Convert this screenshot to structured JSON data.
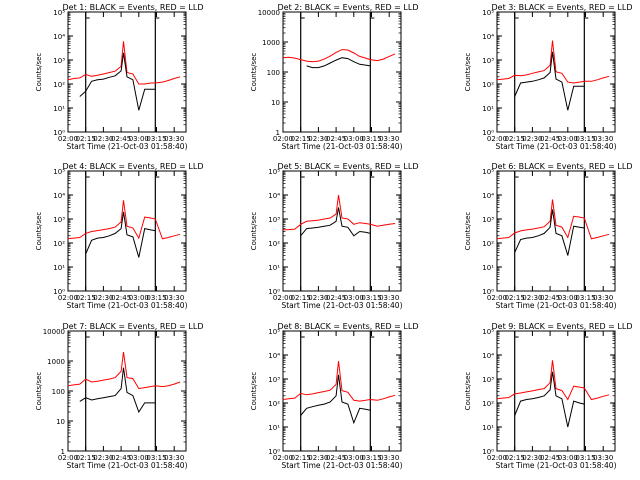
{
  "figure": {
    "common_xlabel": "Start Time (21-Oct-03 01:58:40)",
    "common_ylabel": "Counts/sec",
    "xtick_labels": [
      "02:00",
      "02:15",
      "02:30",
      "02:45",
      "03:00",
      "03:15",
      "03:30"
    ],
    "line_colors": {
      "events": "#000000",
      "lld": "#ff0000"
    }
  },
  "chart_data": [
    {
      "type": "line",
      "title": "Det 1: BLACK = Events, RED = LLD",
      "xlabel": "Start Time (21-Oct-03 01:58:40)",
      "ylabel": "Counts/sec",
      "yscale": "log",
      "ylim": [
        1,
        100000
      ],
      "ytick_labels": [
        "10⁰",
        "10¹",
        "10²",
        "10³",
        "10⁴",
        "10⁵"
      ],
      "xlim": [
        "02:00",
        "03:40"
      ],
      "vlines": [
        "02:15",
        "03:14"
      ],
      "x": [
        "02:00",
        "02:05",
        "02:10",
        "02:15",
        "02:20",
        "02:25",
        "02:30",
        "02:35",
        "02:40",
        "02:45",
        "02:47",
        "02:50",
        "02:55",
        "03:00",
        "03:05",
        "03:10",
        "03:14",
        "03:20",
        "03:25",
        "03:30",
        "03:35",
        "03:40"
      ],
      "series": [
        {
          "name": "Events",
          "values": [
            null,
            null,
            30,
            50,
            130,
            150,
            160,
            190,
            220,
            350,
            2000,
            200,
            150,
            8,
            60,
            60,
            60,
            null,
            null,
            null,
            null,
            null
          ]
        },
        {
          "name": "LLD",
          "values": [
            150,
            170,
            180,
            250,
            210,
            230,
            260,
            300,
            340,
            550,
            6000,
            300,
            260,
            100,
            100,
            110,
            110,
            120,
            140,
            170,
            200,
            null
          ]
        }
      ]
    },
    {
      "type": "line",
      "title": "Det 2: BLACK = Events, RED = LLD",
      "xlabel": "Start Time (21-Oct-03 01:58:40)",
      "ylabel": "Counts/sec",
      "yscale": "log",
      "ylim": [
        1,
        10000
      ],
      "ytick_labels": [
        "1",
        "10",
        "100",
        "1000",
        "10000"
      ],
      "xlim": [
        "02:00",
        "03:40"
      ],
      "vlines": [
        "02:15",
        "03:14"
      ],
      "x": [
        "02:00",
        "02:05",
        "02:10",
        "02:15",
        "02:20",
        "02:25",
        "02:30",
        "02:35",
        "02:40",
        "02:45",
        "02:50",
        "02:55",
        "03:00",
        "03:05",
        "03:10",
        "03:14",
        "03:20",
        "03:25",
        "03:30",
        "03:35",
        "03:40"
      ],
      "series": [
        {
          "name": "Events",
          "values": [
            null,
            null,
            null,
            null,
            160,
            140,
            140,
            160,
            200,
            250,
            300,
            280,
            220,
            180,
            170,
            160,
            null,
            null,
            null,
            null,
            null
          ]
        },
        {
          "name": "LLD",
          "values": [
            300,
            310,
            290,
            260,
            230,
            220,
            230,
            270,
            340,
            450,
            560,
            540,
            430,
            330,
            290,
            260,
            240,
            270,
            330,
            400,
            null
          ]
        }
      ]
    },
    {
      "type": "line",
      "title": "Det 3: BLACK = Events, RED = LLD",
      "xlabel": "Start Time (21-Oct-03 01:58:40)",
      "ylabel": "Counts/sec",
      "yscale": "log",
      "ylim": [
        1,
        100000
      ],
      "ytick_labels": [
        "10⁰",
        "10¹",
        "10²",
        "10³",
        "10⁴",
        "10⁵"
      ],
      "xlim": [
        "02:00",
        "03:40"
      ],
      "vlines": [
        "02:15",
        "03:14"
      ],
      "x": [
        "02:00",
        "02:05",
        "02:10",
        "02:15",
        "02:20",
        "02:25",
        "02:30",
        "02:35",
        "02:40",
        "02:45",
        "02:47",
        "02:50",
        "02:55",
        "03:00",
        "03:05",
        "03:10",
        "03:14",
        "03:20",
        "03:25",
        "03:30",
        "03:35",
        "03:40"
      ],
      "series": [
        {
          "name": "Events",
          "values": [
            null,
            null,
            null,
            30,
            110,
            120,
            130,
            150,
            180,
            300,
            2200,
            160,
            120,
            8,
            80,
            80,
            80,
            null,
            null,
            null,
            null,
            null
          ]
        },
        {
          "name": "LLD",
          "values": [
            150,
            160,
            170,
            230,
            220,
            240,
            280,
            320,
            360,
            600,
            6500,
            320,
            280,
            120,
            110,
            120,
            130,
            130,
            150,
            180,
            210,
            null
          ]
        }
      ]
    },
    {
      "type": "line",
      "title": "Det 4: BLACK = Events, RED = LLD",
      "xlabel": "Start Time (21-Oct-03 01:58:40)",
      "ylabel": "Counts/sec",
      "yscale": "log",
      "ylim": [
        1,
        100000
      ],
      "ytick_labels": [
        "10⁰",
        "10¹",
        "10²",
        "10³",
        "10⁴",
        "10⁵"
      ],
      "xlim": [
        "02:00",
        "03:40"
      ],
      "vlines": [
        "02:15",
        "03:14"
      ],
      "x": [
        "02:00",
        "02:05",
        "02:10",
        "02:15",
        "02:20",
        "02:25",
        "02:30",
        "02:35",
        "02:40",
        "02:45",
        "02:47",
        "02:50",
        "02:55",
        "03:00",
        "03:05",
        "03:10",
        "03:14",
        "03:20",
        "03:25",
        "03:30",
        "03:35",
        "03:40"
      ],
      "series": [
        {
          "name": "Events",
          "values": [
            null,
            null,
            null,
            35,
            130,
            160,
            170,
            200,
            250,
            400,
            2000,
            220,
            180,
            25,
            400,
            350,
            330,
            null,
            null,
            null,
            null,
            null
          ]
        },
        {
          "name": "LLD",
          "values": [
            150,
            160,
            170,
            250,
            300,
            330,
            360,
            400,
            460,
            750,
            6000,
            500,
            420,
            160,
            1200,
            1100,
            1000,
            150,
            170,
            200,
            230,
            null
          ]
        }
      ]
    },
    {
      "type": "line",
      "title": "Det 5: BLACK = Events, RED = LLD",
      "xlabel": "Start Time (21-Oct-03 01:58:40)",
      "ylabel": "Counts/sec",
      "yscale": "log",
      "ylim": [
        1,
        100000
      ],
      "ytick_labels": [
        "10⁰",
        "10¹",
        "10²",
        "10³",
        "10⁴",
        "10⁵"
      ],
      "xlim": [
        "02:00",
        "03:40"
      ],
      "vlines": [
        "02:15",
        "03:14"
      ],
      "x": [
        "02:00",
        "02:05",
        "02:10",
        "02:15",
        "02:20",
        "02:25",
        "02:30",
        "02:35",
        "02:40",
        "02:45",
        "02:47",
        "02:50",
        "02:55",
        "03:00",
        "03:05",
        "03:10",
        "03:14",
        "03:20",
        "03:25",
        "03:30",
        "03:35",
        "03:40"
      ],
      "series": [
        {
          "name": "Events",
          "values": [
            null,
            null,
            null,
            200,
            400,
            420,
            450,
            500,
            550,
            800,
            3000,
            500,
            450,
            200,
            300,
            280,
            250,
            null,
            null,
            null,
            null,
            null
          ]
        },
        {
          "name": "LLD",
          "values": [
            350,
            360,
            380,
            600,
            800,
            850,
            900,
            1000,
            1100,
            1600,
            10000,
            1100,
            1000,
            600,
            700,
            650,
            600,
            500,
            550,
            600,
            650,
            null
          ]
        }
      ]
    },
    {
      "type": "line",
      "title": "Det 6: BLACK = Events, RED = LLD",
      "xlabel": "Start Time (21-Oct-03 01:58:40)",
      "ylabel": "Counts/sec",
      "yscale": "log",
      "ylim": [
        1,
        100000
      ],
      "ytick_labels": [
        "10⁰",
        "10¹",
        "10²",
        "10³",
        "10⁴",
        "10⁵"
      ],
      "xlim": [
        "02:00",
        "03:40"
      ],
      "vlines": [
        "02:15",
        "03:14"
      ],
      "x": [
        "02:00",
        "02:05",
        "02:10",
        "02:15",
        "02:20",
        "02:25",
        "02:30",
        "02:35",
        "02:40",
        "02:45",
        "02:47",
        "02:50",
        "02:55",
        "03:00",
        "03:05",
        "03:10",
        "03:14",
        "03:20",
        "03:25",
        "03:30",
        "03:35",
        "03:40"
      ],
      "series": [
        {
          "name": "Events",
          "values": [
            null,
            null,
            null,
            40,
            140,
            160,
            170,
            200,
            250,
            450,
            2500,
            250,
            200,
            30,
            500,
            450,
            420,
            null,
            null,
            null,
            null,
            null
          ]
        },
        {
          "name": "LLD",
          "values": [
            150,
            160,
            170,
            260,
            320,
            350,
            380,
            420,
            480,
            800,
            6500,
            550,
            460,
            170,
            1300,
            1200,
            1100,
            150,
            170,
            200,
            230,
            null
          ]
        }
      ]
    },
    {
      "type": "line",
      "title": "Det 7: BLACK = Events, RED = LLD",
      "xlabel": "Start Time (21-Oct-03 01:58:40)",
      "ylabel": "Counts/sec",
      "yscale": "log",
      "ylim": [
        1,
        10000
      ],
      "ytick_labels": [
        "1",
        "10",
        "100",
        "1000",
        "10000"
      ],
      "xlim": [
        "02:00",
        "03:40"
      ],
      "vlines": [
        "02:15",
        "03:14"
      ],
      "x": [
        "02:00",
        "02:05",
        "02:10",
        "02:15",
        "02:20",
        "02:25",
        "02:30",
        "02:35",
        "02:40",
        "02:45",
        "02:47",
        "02:50",
        "02:55",
        "03:00",
        "03:05",
        "03:10",
        "03:14",
        "03:20",
        "03:25",
        "03:30",
        "03:35",
        "03:40"
      ],
      "series": [
        {
          "name": "Events",
          "values": [
            null,
            null,
            45,
            60,
            50,
            55,
            60,
            65,
            70,
            120,
            600,
            90,
            70,
            20,
            40,
            40,
            40,
            null,
            null,
            null,
            null,
            null
          ]
        },
        {
          "name": "LLD",
          "values": [
            150,
            160,
            170,
            250,
            200,
            210,
            230,
            250,
            280,
            450,
            2000,
            280,
            260,
            120,
            130,
            140,
            150,
            140,
            150,
            170,
            200,
            null
          ]
        }
      ]
    },
    {
      "type": "line",
      "title": "Det 8: BLACK = Events, RED = LLD",
      "xlabel": "Start Time (21-Oct-03 01:58:40)",
      "ylabel": "Counts/sec",
      "yscale": "log",
      "ylim": [
        1,
        100000
      ],
      "ytick_labels": [
        "10⁰",
        "10¹",
        "10²",
        "10³",
        "10⁴",
        "10⁵"
      ],
      "xlim": [
        "02:00",
        "03:40"
      ],
      "vlines": [
        "02:15",
        "03:14"
      ],
      "x": [
        "02:00",
        "02:05",
        "02:10",
        "02:15",
        "02:20",
        "02:25",
        "02:30",
        "02:35",
        "02:40",
        "02:45",
        "02:47",
        "02:50",
        "02:55",
        "03:00",
        "03:05",
        "03:10",
        "03:14",
        "03:20",
        "03:25",
        "03:30",
        "03:35",
        "03:40"
      ],
      "series": [
        {
          "name": "Events",
          "values": [
            null,
            null,
            null,
            30,
            60,
            70,
            80,
            90,
            110,
            200,
            1500,
            110,
            90,
            15,
            60,
            55,
            50,
            null,
            null,
            null,
            null,
            null
          ]
        },
        {
          "name": "LLD",
          "values": [
            140,
            150,
            160,
            250,
            220,
            240,
            270,
            300,
            340,
            600,
            5500,
            330,
            280,
            130,
            120,
            130,
            140,
            130,
            150,
            180,
            210,
            null
          ]
        }
      ]
    },
    {
      "type": "line",
      "title": "Det 9: BLACK = Events, RED = LLD",
      "xlabel": "Start Time (21-Oct-03 01:58:40)",
      "ylabel": "Counts/sec",
      "yscale": "log",
      "ylim": [
        1,
        100000
      ],
      "ytick_labels": [
        "10⁰",
        "10¹",
        "10²",
        "10³",
        "10⁴",
        "10⁵"
      ],
      "xlim": [
        "02:00",
        "03:40"
      ],
      "vlines": [
        "02:15",
        "03:14"
      ],
      "x": [
        "02:00",
        "02:05",
        "02:10",
        "02:15",
        "02:20",
        "02:25",
        "02:30",
        "02:35",
        "02:40",
        "02:45",
        "02:47",
        "02:50",
        "02:55",
        "03:00",
        "03:05",
        "03:10",
        "03:14",
        "03:20",
        "03:25",
        "03:30",
        "03:35",
        "03:40"
      ],
      "series": [
        {
          "name": "Events",
          "values": [
            null,
            null,
            null,
            30,
            120,
            140,
            150,
            170,
            200,
            350,
            2000,
            200,
            150,
            10,
            120,
            100,
            90,
            null,
            null,
            null,
            null,
            null
          ]
        },
        {
          "name": "LLD",
          "values": [
            150,
            160,
            170,
            240,
            260,
            290,
            320,
            360,
            400,
            700,
            6000,
            400,
            330,
            140,
            500,
            460,
            420,
            140,
            160,
            190,
            220,
            null
          ]
        }
      ]
    }
  ]
}
